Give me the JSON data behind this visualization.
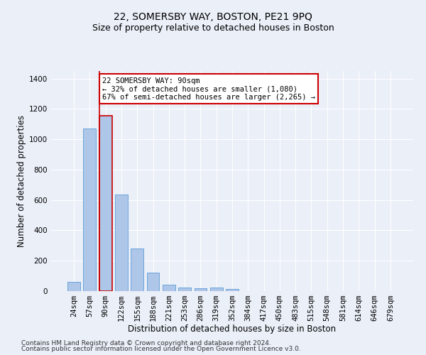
{
  "title": "22, SOMERSBY WAY, BOSTON, PE21 9PQ",
  "subtitle": "Size of property relative to detached houses in Boston",
  "xlabel": "Distribution of detached houses by size in Boston",
  "ylabel": "Number of detached properties",
  "categories": [
    "24sqm",
    "57sqm",
    "90sqm",
    "122sqm",
    "155sqm",
    "188sqm",
    "221sqm",
    "253sqm",
    "286sqm",
    "319sqm",
    "352sqm",
    "384sqm",
    "417sqm",
    "450sqm",
    "483sqm",
    "515sqm",
    "548sqm",
    "581sqm",
    "614sqm",
    "646sqm",
    "679sqm"
  ],
  "values": [
    60,
    1070,
    1155,
    635,
    280,
    120,
    42,
    22,
    18,
    22,
    14,
    0,
    0,
    0,
    0,
    0,
    0,
    0,
    0,
    0,
    0
  ],
  "bar_color": "#aec6e8",
  "bar_edge_color": "#5b9bd5",
  "highlight_bar_index": 2,
  "highlight_edge_color": "#cc0000",
  "vline_color": "#cc0000",
  "annotation_line1": "22 SOMERSBY WAY: 90sqm",
  "annotation_line2": "← 32% of detached houses are smaller (1,080)",
  "annotation_line3": "67% of semi-detached houses are larger (2,265) →",
  "annotation_box_color": "#ffffff",
  "annotation_edge_color": "#cc0000",
  "ylim": [
    0,
    1450
  ],
  "yticks": [
    0,
    200,
    400,
    600,
    800,
    1000,
    1200,
    1400
  ],
  "footer_line1": "Contains HM Land Registry data © Crown copyright and database right 2024.",
  "footer_line2": "Contains public sector information licensed under the Open Government Licence v3.0.",
  "bg_color": "#eaeff8",
  "plot_bg_color": "#eaeff8",
  "title_fontsize": 10,
  "subtitle_fontsize": 9,
  "axis_label_fontsize": 8.5,
  "tick_fontsize": 7.5,
  "annotation_fontsize": 7.5,
  "footer_fontsize": 6.5
}
